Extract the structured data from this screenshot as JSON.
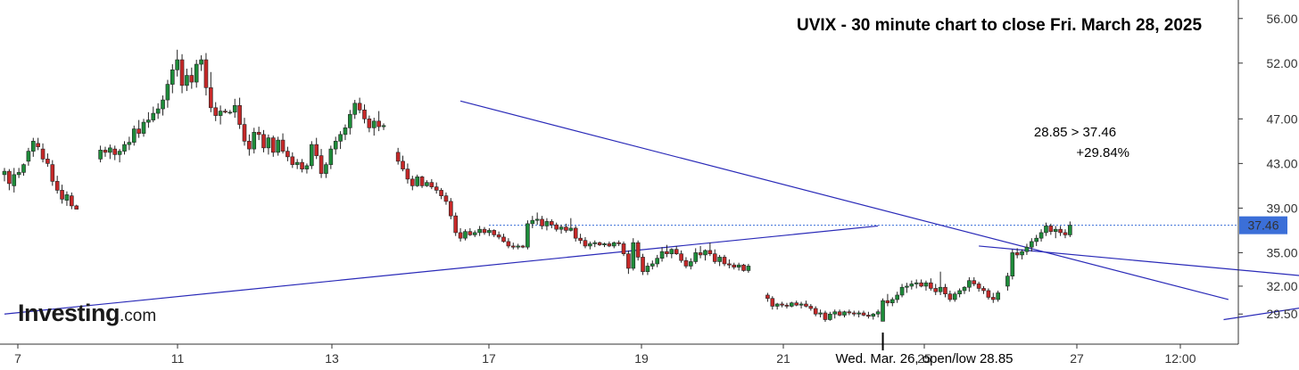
{
  "brand": {
    "name": "Investing",
    "suffix": ".com"
  },
  "colors": {
    "up": "#1e8c3a",
    "down": "#c62828",
    "trendline": "#2a2ab8",
    "price_line": "#3b6fd8",
    "price_tag_bg": "#3b6fd8",
    "axis": "#333333"
  },
  "chart_data": {
    "type": "candlestick",
    "title": "UVIX - 30 minute chart to close Fri. March 28, 2025",
    "annotations": {
      "move": "28.85 > 37.46",
      "percent": "+29.84%",
      "low_note": "Wed. Mar. 26, open/low 28.85"
    },
    "y_ticks": [
      "56.00",
      "52.00",
      "47.00",
      "43.00",
      "39.00",
      "35.00",
      "32.00",
      "29.50"
    ],
    "y_range": [
      26.8,
      57.5
    ],
    "x_ticks": [
      "7",
      "11",
      "13",
      "17",
      "19",
      "21",
      "25",
      "27",
      "12:00"
    ],
    "last_price": "37.46",
    "price_line": 37.46,
    "trendlines": [
      {
        "from": [
          0,
          29.5
        ],
        "to": [
          182,
          37.4
        ]
      },
      {
        "from": [
          95,
          48.6
        ],
        "to": [
          255,
          30.8
        ]
      },
      {
        "from": [
          203,
          35.6
        ],
        "to": [
          304,
          31.6
        ]
      },
      {
        "from": [
          254,
          29.0
        ],
        "to": [
          306,
          32.4
        ]
      }
    ],
    "series": [
      [
        42.0,
        42.6,
        41.4,
        42.3
      ],
      [
        42.3,
        42.5,
        40.6,
        41.2
      ],
      [
        41.0,
        42.6,
        40.4,
        42.0
      ],
      [
        42.0,
        42.6,
        41.7,
        42.2
      ],
      [
        42.2,
        43.0,
        41.9,
        42.9
      ],
      [
        43.2,
        44.4,
        42.8,
        44.1
      ],
      [
        44.1,
        45.3,
        43.6,
        45.0
      ],
      [
        44.8,
        45.3,
        44.2,
        44.5
      ],
      [
        44.3,
        44.8,
        43.1,
        43.4
      ],
      [
        43.4,
        43.9,
        42.7,
        43.0
      ],
      [
        42.9,
        43.3,
        41.0,
        41.4
      ],
      [
        41.4,
        41.9,
        40.3,
        40.6
      ],
      [
        40.6,
        41.1,
        39.4,
        39.8
      ],
      [
        39.7,
        40.5,
        39.2,
        40.2
      ],
      [
        40.1,
        40.4,
        38.9,
        39.2
      ],
      [
        39.2,
        39.3,
        38.9,
        38.9
      ],
      [
        null
      ],
      [
        null
      ],
      [
        null
      ],
      [
        null
      ],
      [
        43.4,
        44.6,
        43.1,
        44.2
      ],
      [
        44.2,
        44.5,
        43.6,
        44.0
      ],
      [
        44.0,
        44.7,
        43.4,
        44.4
      ],
      [
        44.3,
        44.6,
        43.3,
        43.8
      ],
      [
        43.8,
        44.3,
        43.1,
        44.1
      ],
      [
        44.1,
        45.0,
        43.8,
        44.7
      ],
      [
        44.7,
        45.4,
        44.2,
        44.9
      ],
      [
        44.9,
        46.4,
        44.6,
        46.1
      ],
      [
        46.1,
        46.9,
        45.3,
        45.7
      ],
      [
        45.7,
        47.0,
        45.4,
        46.7
      ],
      [
        46.7,
        47.6,
        46.2,
        46.9
      ],
      [
        46.9,
        48.1,
        46.7,
        47.5
      ],
      [
        47.5,
        48.4,
        47.0,
        47.9
      ],
      [
        47.9,
        49.1,
        47.3,
        48.7
      ],
      [
        48.7,
        50.5,
        48.0,
        50.1
      ],
      [
        50.1,
        51.9,
        49.3,
        51.4
      ],
      [
        51.4,
        53.2,
        50.8,
        52.3
      ],
      [
        52.3,
        52.8,
        49.3,
        50.0
      ],
      [
        50.0,
        51.5,
        49.5,
        50.9
      ],
      [
        50.9,
        51.6,
        49.7,
        50.3
      ],
      [
        50.3,
        52.3,
        49.8,
        51.9
      ],
      [
        51.9,
        52.7,
        51.3,
        52.3
      ],
      [
        52.3,
        52.9,
        49.1,
        49.8
      ],
      [
        49.8,
        51.2,
        47.6,
        48.0
      ],
      [
        48.0,
        48.5,
        46.8,
        47.3
      ],
      [
        47.3,
        48.2,
        46.5,
        47.7
      ],
      [
        47.7,
        47.9,
        47.5,
        47.6
      ],
      [
        47.6,
        47.8,
        47.4,
        47.6
      ],
      [
        47.6,
        48.8,
        47.1,
        48.2
      ],
      [
        48.2,
        48.9,
        46.1,
        46.5
      ],
      [
        46.5,
        47.1,
        44.6,
        45.0
      ],
      [
        45.0,
        45.6,
        43.7,
        44.3
      ],
      [
        44.3,
        46.2,
        43.9,
        45.8
      ],
      [
        45.8,
        46.3,
        45.1,
        45.6
      ],
      [
        45.6,
        46.0,
        44.0,
        44.4
      ],
      [
        44.4,
        45.6,
        43.8,
        45.3
      ],
      [
        45.3,
        45.5,
        43.6,
        44.0
      ],
      [
        44.0,
        45.4,
        43.7,
        45.1
      ],
      [
        45.1,
        45.7,
        43.9,
        44.1
      ],
      [
        44.1,
        44.5,
        43.2,
        43.6
      ],
      [
        43.6,
        44.0,
        42.6,
        42.9
      ],
      [
        42.9,
        43.4,
        42.5,
        43.1
      ],
      [
        43.1,
        43.4,
        42.2,
        42.5
      ],
      [
        42.5,
        43.0,
        42.1,
        42.8
      ],
      [
        42.8,
        45.0,
        42.5,
        44.7
      ],
      [
        44.7,
        45.3,
        43.4,
        43.7
      ],
      [
        43.7,
        44.3,
        41.7,
        42.1
      ],
      [
        42.1,
        43.1,
        41.7,
        42.9
      ],
      [
        42.9,
        44.6,
        42.5,
        44.3
      ],
      [
        44.3,
        45.4,
        43.8,
        45.0
      ],
      [
        45.0,
        45.9,
        44.3,
        45.6
      ],
      [
        45.6,
        46.5,
        45.1,
        46.2
      ],
      [
        46.2,
        47.8,
        45.6,
        47.4
      ],
      [
        47.4,
        48.7,
        47.0,
        48.4
      ],
      [
        48.4,
        48.9,
        47.5,
        47.8
      ],
      [
        47.8,
        48.3,
        46.6,
        47.0
      ],
      [
        47.0,
        47.3,
        45.8,
        46.2
      ],
      [
        46.2,
        47.1,
        45.5,
        46.8
      ],
      [
        46.8,
        47.7,
        45.9,
        46.3
      ],
      [
        46.3,
        46.6,
        46.0,
        46.4
      ],
      [
        null
      ],
      [
        null
      ],
      [
        44.0,
        44.4,
        42.9,
        43.2
      ],
      [
        43.2,
        43.7,
        42.3,
        42.5
      ],
      [
        42.5,
        43.0,
        41.2,
        41.6
      ],
      [
        41.6,
        41.9,
        40.6,
        41.0
      ],
      [
        41.0,
        42.0,
        40.9,
        41.8
      ],
      [
        41.8,
        41.9,
        40.8,
        41.0
      ],
      [
        41.0,
        41.5,
        40.9,
        41.3
      ],
      [
        41.3,
        41.6,
        40.7,
        40.9
      ],
      [
        40.9,
        41.3,
        40.3,
        40.6
      ],
      [
        40.6,
        40.8,
        39.8,
        40.1
      ],
      [
        40.1,
        40.4,
        39.3,
        39.6
      ],
      [
        39.6,
        39.9,
        38.0,
        38.3
      ],
      [
        38.3,
        38.6,
        36.5,
        36.8
      ],
      [
        36.8,
        37.2,
        36.0,
        36.3
      ],
      [
        36.3,
        37.1,
        36.1,
        36.9
      ],
      [
        36.9,
        37.2,
        36.5,
        36.6
      ],
      [
        36.6,
        37.0,
        36.4,
        36.8
      ],
      [
        36.8,
        37.4,
        36.5,
        37.1
      ],
      [
        37.1,
        37.3,
        36.6,
        36.8
      ],
      [
        36.8,
        37.2,
        36.5,
        37.0
      ],
      [
        37.0,
        37.1,
        36.4,
        36.6
      ],
      [
        36.6,
        36.9,
        36.2,
        36.4
      ],
      [
        36.4,
        36.7,
        35.9,
        36.0
      ],
      [
        36.0,
        36.3,
        35.4,
        35.6
      ],
      [
        35.6,
        35.9,
        35.3,
        35.5
      ],
      [
        35.5,
        35.8,
        35.3,
        35.6
      ],
      [
        35.6,
        35.7,
        35.4,
        35.5
      ],
      [
        35.5,
        37.9,
        35.3,
        37.6
      ],
      [
        37.6,
        38.3,
        37.2,
        37.9
      ],
      [
        37.9,
        38.6,
        37.5,
        38.0
      ],
      [
        38.0,
        38.3,
        37.1,
        37.4
      ],
      [
        37.4,
        38.1,
        37.0,
        37.8
      ],
      [
        37.8,
        38.0,
        37.2,
        37.5
      ],
      [
        37.5,
        37.7,
        36.9,
        37.1
      ],
      [
        37.1,
        37.5,
        36.7,
        37.3
      ],
      [
        37.3,
        37.6,
        36.8,
        37.0
      ],
      [
        37.0,
        38.1,
        36.9,
        37.2
      ],
      [
        37.2,
        37.4,
        36.0,
        36.3
      ],
      [
        36.3,
        36.7,
        35.8,
        36.1
      ],
      [
        36.1,
        36.4,
        35.4,
        35.6
      ],
      [
        35.6,
        36.0,
        35.3,
        35.8
      ],
      [
        35.8,
        36.1,
        35.5,
        35.9
      ],
      [
        35.9,
        36.0,
        35.6,
        35.7
      ],
      [
        35.7,
        35.9,
        35.5,
        35.8
      ],
      [
        35.8,
        36.0,
        35.5,
        35.6
      ],
      [
        35.6,
        36.0,
        35.4,
        35.9
      ],
      [
        35.9,
        36.1,
        35.6,
        35.8
      ],
      [
        35.8,
        36.0,
        34.7,
        34.9
      ],
      [
        34.9,
        35.2,
        33.1,
        33.6
      ],
      [
        33.6,
        36.3,
        33.4,
        35.9
      ],
      [
        35.9,
        36.1,
        34.3,
        34.6
      ],
      [
        34.6,
        34.9,
        33.0,
        33.3
      ],
      [
        33.3,
        34.1,
        33.0,
        33.8
      ],
      [
        33.8,
        34.3,
        33.5,
        34.0
      ],
      [
        34.0,
        34.8,
        33.7,
        34.5
      ],
      [
        34.5,
        35.5,
        34.2,
        35.1
      ],
      [
        35.1,
        35.7,
        34.6,
        34.9
      ],
      [
        34.9,
        35.4,
        34.5,
        35.3
      ],
      [
        35.3,
        35.6,
        34.8,
        34.9
      ],
      [
        34.9,
        35.2,
        34.1,
        34.3
      ],
      [
        34.3,
        34.6,
        33.6,
        33.8
      ],
      [
        33.8,
        34.5,
        33.5,
        34.2
      ],
      [
        34.2,
        35.4,
        34.0,
        35.0
      ],
      [
        35.0,
        35.6,
        34.5,
        34.8
      ],
      [
        34.8,
        35.3,
        34.3,
        35.2
      ],
      [
        35.2,
        35.9,
        34.7,
        34.9
      ],
      [
        34.9,
        35.3,
        34.0,
        34.2
      ],
      [
        34.2,
        34.8,
        33.8,
        34.6
      ],
      [
        34.6,
        34.8,
        33.8,
        34.0
      ],
      [
        34.0,
        34.4,
        33.6,
        33.9
      ],
      [
        33.9,
        34.1,
        33.5,
        33.7
      ],
      [
        33.7,
        34.1,
        33.4,
        33.9
      ],
      [
        33.9,
        34.0,
        33.3,
        33.4
      ],
      [
        33.4,
        34.0,
        33.2,
        33.8
      ],
      [
        null
      ],
      [
        null
      ],
      [
        null
      ],
      [
        31.2,
        31.4,
        30.6,
        30.9
      ],
      [
        30.9,
        31.1,
        29.9,
        30.2
      ],
      [
        30.2,
        30.5,
        29.9,
        30.4
      ],
      [
        30.4,
        30.6,
        30.1,
        30.3
      ],
      [
        30.3,
        30.5,
        30.0,
        30.2
      ],
      [
        30.2,
        30.6,
        30.1,
        30.5
      ],
      [
        30.5,
        30.7,
        30.2,
        30.3
      ],
      [
        30.3,
        30.6,
        30.0,
        30.4
      ],
      [
        30.4,
        30.7,
        30.1,
        30.2
      ],
      [
        30.2,
        30.4,
        29.8,
        30.0
      ],
      [
        30.0,
        30.2,
        29.3,
        29.5
      ],
      [
        29.5,
        29.9,
        29.2,
        29.6
      ],
      [
        29.6,
        29.8,
        28.8,
        29.0
      ],
      [
        29.0,
        29.7,
        28.9,
        29.5
      ],
      [
        29.5,
        29.9,
        29.1,
        29.7
      ],
      [
        29.7,
        29.9,
        29.3,
        29.4
      ],
      [
        29.4,
        29.8,
        29.2,
        29.7
      ],
      [
        29.7,
        29.9,
        29.4,
        29.6
      ],
      [
        29.6,
        29.8,
        29.3,
        29.5
      ],
      [
        29.5,
        29.8,
        29.2,
        29.6
      ],
      [
        29.6,
        29.8,
        29.3,
        29.4
      ],
      [
        29.4,
        29.7,
        29.1,
        29.3
      ],
      [
        29.3,
        29.6,
        29.0,
        29.5
      ],
      [
        29.5,
        29.9,
        29.2,
        29.7
      ],
      [
        28.85,
        30.9,
        28.85,
        30.7
      ],
      [
        30.7,
        31.3,
        30.2,
        30.5
      ],
      [
        30.5,
        31.0,
        30.2,
        30.8
      ],
      [
        30.8,
        31.5,
        30.5,
        31.2
      ],
      [
        31.2,
        32.2,
        31.0,
        31.9
      ],
      [
        31.9,
        32.3,
        31.4,
        32.0
      ],
      [
        32.0,
        32.5,
        31.7,
        32.2
      ],
      [
        32.2,
        32.6,
        31.8,
        32.3
      ],
      [
        32.3,
        32.6,
        31.9,
        32.0
      ],
      [
        32.0,
        32.5,
        31.6,
        32.3
      ],
      [
        32.3,
        32.7,
        31.6,
        31.8
      ],
      [
        31.8,
        32.2,
        31.2,
        31.5
      ],
      [
        31.5,
        33.3,
        31.2,
        31.9
      ],
      [
        31.9,
        32.2,
        31.0,
        31.3
      ],
      [
        31.3,
        31.6,
        30.6,
        30.8
      ],
      [
        30.8,
        31.5,
        30.6,
        31.3
      ],
      [
        31.3,
        31.8,
        31.0,
        31.6
      ],
      [
        31.6,
        32.0,
        31.3,
        31.9
      ],
      [
        31.9,
        32.8,
        31.5,
        32.5
      ],
      [
        32.5,
        32.8,
        32.0,
        32.2
      ],
      [
        32.2,
        32.4,
        31.5,
        31.8
      ],
      [
        31.8,
        32.0,
        31.3,
        31.6
      ],
      [
        31.6,
        31.8,
        30.8,
        31.0
      ],
      [
        31.0,
        31.4,
        30.5,
        30.8
      ],
      [
        30.8,
        31.6,
        30.6,
        31.4
      ],
      [
        null
      ],
      [
        32.0,
        33.2,
        31.6,
        32.9
      ],
      [
        32.9,
        35.3,
        32.6,
        35.0
      ],
      [
        35.0,
        35.4,
        34.5,
        34.8
      ],
      [
        34.8,
        35.3,
        34.4,
        35.1
      ],
      [
        35.1,
        35.8,
        34.8,
        35.5
      ],
      [
        35.5,
        36.3,
        35.1,
        36.0
      ],
      [
        36.0,
        36.6,
        35.6,
        36.3
      ],
      [
        36.3,
        37.1,
        36.0,
        36.8
      ],
      [
        36.8,
        37.7,
        36.5,
        37.4
      ],
      [
        37.4,
        37.6,
        36.6,
        36.9
      ],
      [
        36.9,
        37.4,
        36.3,
        37.1
      ],
      [
        37.1,
        37.4,
        36.5,
        36.8
      ],
      [
        36.8,
        37.1,
        36.3,
        36.6
      ],
      [
        36.6,
        37.8,
        36.4,
        37.46
      ]
    ]
  }
}
